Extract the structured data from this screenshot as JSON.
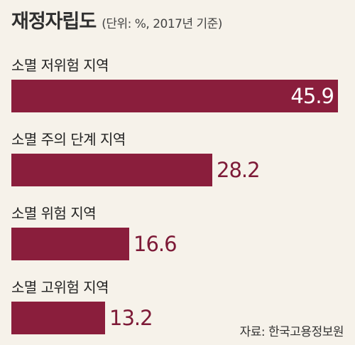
{
  "chart_data": {
    "type": "bar",
    "orientation": "horizontal",
    "title": "재정자립도",
    "unit_note": "(단위: %, 2017년 기준)",
    "categories": [
      "소멸 저위험 지역",
      "소멸 주의 단계 지역",
      "소멸 위험 지역",
      "소멸 고위험 지역"
    ],
    "values": [
      45.9,
      28.2,
      16.6,
      13.2
    ],
    "value_labels": [
      "45.9",
      "28.2",
      "16.6",
      "13.2"
    ],
    "xlim": [
      0,
      45.9
    ],
    "grid": false,
    "bar_color": "#8a1e3c",
    "source": "자료: 한국고용정보원"
  }
}
